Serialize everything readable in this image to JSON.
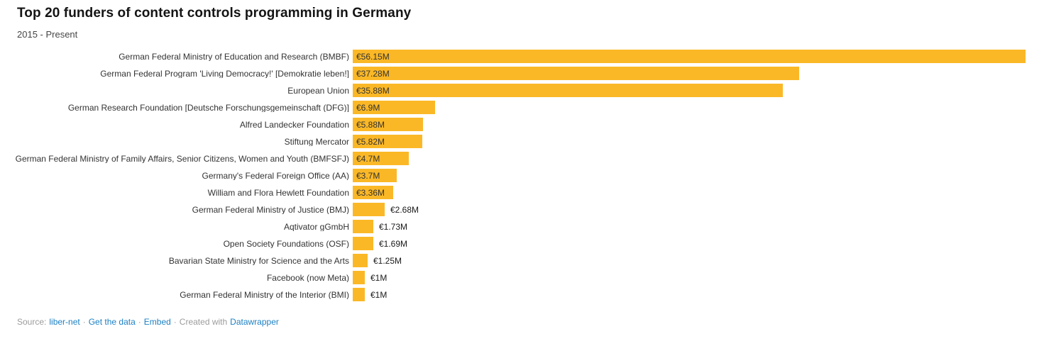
{
  "header": {
    "title": "Top 20 funders of content controls programming in Germany",
    "subtitle": "2015 - Present"
  },
  "chart_data": {
    "type": "bar",
    "orientation": "horizontal",
    "title": "Top 20 funders of content controls programming in Germany",
    "subtitle": "2015 - Present",
    "unit": "EUR millions",
    "xlim": [
      0,
      56.15
    ],
    "grid": false,
    "legend": false,
    "categories": [
      "German Federal Ministry of Education and Research (BMBF)",
      "German Federal Program 'Living Democracy!' [Demokratie leben!]",
      "European Union",
      "German Research Foundation [Deutsche Forschungsgemeinschaft (DFG)]",
      "Alfred Landecker Foundation",
      "Stiftung Mercator",
      "German Federal Ministry of Family Affairs, Senior Citizens, Women and Youth (BMFSFJ)",
      "Germany's Federal Foreign Office (AA)",
      "William and Flora Hewlett Foundation",
      "German Federal Ministry of Justice (BMJ)",
      "Aqtivator gGmbH",
      "Open Society Foundations (OSF)",
      "Bavarian State Ministry for Science and the Arts",
      "Facebook (now Meta)",
      "German Federal Ministry of the Interior (BMI)"
    ],
    "values": [
      56.15,
      37.28,
      35.88,
      6.9,
      5.88,
      5.82,
      4.7,
      3.7,
      3.36,
      2.68,
      1.73,
      1.69,
      1.25,
      1,
      1
    ],
    "value_labels": [
      "€56.15M",
      "€37.28M",
      "€35.88M",
      "€6.9M",
      "€5.88M",
      "€5.82M",
      "€4.7M",
      "€3.7M",
      "€3.36M",
      "€2.68M",
      "€1.73M",
      "€1.69M",
      "€1.25M",
      "€1M",
      "€1M"
    ]
  },
  "footer": {
    "source_prefix": "Source:",
    "source_link_label": "liber-net",
    "separator": "·",
    "get_data_label": "Get the data",
    "embed_label": "Embed",
    "created_with_label": "Created with",
    "created_link_label": "Datawrapper"
  },
  "colors": {
    "bar": "#FBB826",
    "link": "#1D80C3",
    "muted_text": "#9B9B9B",
    "label_text": "#333333"
  }
}
